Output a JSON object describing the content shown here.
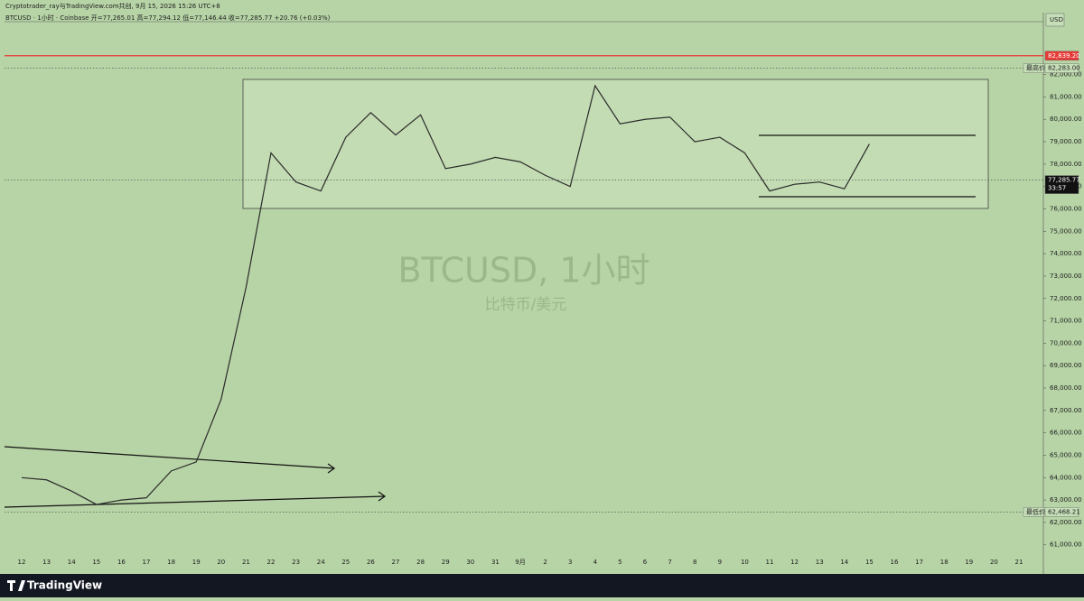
{
  "header": {
    "author_line": "Cryptotrader_ray与TradingView.com共创, 9月 15, 2026 15:26 UTC+8",
    "symbol_line": "BTCUSD · 1小时 · Coinbase   开=77,265.01  高=77,294.12  低=77,146.44  收=77,285.77  +20.76 (+0.03%)"
  },
  "chart_data": {
    "type": "line",
    "watermark": "BTCUSD, 1小时",
    "watermark_sub": "比特币/美元",
    "currency": "USD",
    "categories": [
      "12",
      "13",
      "14",
      "15",
      "16",
      "17",
      "18",
      "19",
      "20",
      "21",
      "22",
      "23",
      "24",
      "25",
      "26",
      "27",
      "28",
      "29",
      "30",
      "31",
      "9月",
      "2",
      "3",
      "4",
      "5",
      "6",
      "7",
      "8",
      "9",
      "10",
      "11",
      "12",
      "13",
      "14",
      "15",
      "16",
      "17",
      "18",
      "19",
      "20",
      "21"
    ],
    "values": [
      64000,
      63900,
      63400,
      62800,
      63000,
      63100,
      64300,
      64700,
      67500,
      72500,
      78500,
      77200,
      76800,
      79200,
      80300,
      79300,
      80200,
      77800,
      78000,
      78300,
      78100,
      77500,
      77000,
      81500,
      79800,
      80000,
      80100,
      79000,
      79200,
      78500,
      76800,
      77100,
      77200,
      76900,
      78900,
      null,
      null,
      null,
      null,
      null,
      null
    ],
    "color": "#2b2b2b",
    "ylim": [
      59700,
      84200
    ],
    "yticks": [
      {
        "value": 61000,
        "label": "61,000.00"
      },
      {
        "value": 62000,
        "label": "62,000.00"
      },
      {
        "value": 63000,
        "label": "63,000.00"
      },
      {
        "value": 64000,
        "label": "64,000.00"
      },
      {
        "value": 65000,
        "label": "65,000.00"
      },
      {
        "value": 66000,
        "label": "66,000.00"
      },
      {
        "value": 67000,
        "label": "67,000.00"
      },
      {
        "value": 68000,
        "label": "68,000.00"
      },
      {
        "value": 69000,
        "label": "69,000.00"
      },
      {
        "value": 70000,
        "label": "70,000.00"
      },
      {
        "value": 71000,
        "label": "71,000.00"
      },
      {
        "value": 72000,
        "label": "72,000.00"
      },
      {
        "value": 73000,
        "label": "73,000.00"
      },
      {
        "value": 74000,
        "label": "74,000.00"
      },
      {
        "value": 75000,
        "label": "75,000.00"
      },
      {
        "value": 76000,
        "label": "76,000.00"
      },
      {
        "value": 77000,
        "label": "77,000.00"
      },
      {
        "value": 78000,
        "label": "78,000.00"
      },
      {
        "value": 79000,
        "label": "79,000.00"
      },
      {
        "value": 80000,
        "label": "80,000.00"
      },
      {
        "value": 81000,
        "label": "81,000.00"
      },
      {
        "value": 82000,
        "label": "82,000.00"
      }
    ],
    "price_labels": [
      {
        "value": 82839.2,
        "label": "82,839.20",
        "color": "#e53935"
      },
      {
        "value": 82283,
        "label": "82,283.00",
        "tag": "最高价"
      },
      {
        "value": 77285.77,
        "label": "77,285.77",
        "countdown": "33:57"
      },
      {
        "value": 62468.21,
        "label": "62,468.21",
        "tag": "最低价"
      }
    ]
  },
  "footer": {
    "logo": "TradingView"
  }
}
